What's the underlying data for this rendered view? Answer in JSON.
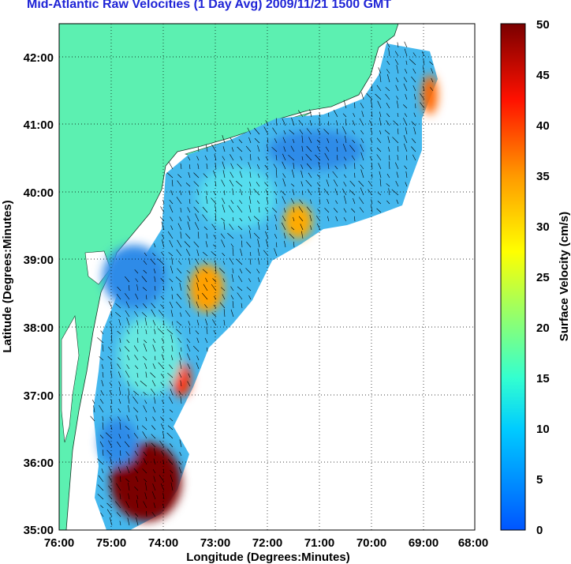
{
  "title": "Mid-Atlantic Raw Velocities (1 Day Avg) 2009/11/21 1500 GMT",
  "map": {
    "x_label": "Longitude (Degrees:Minutes)",
    "y_label": "Latitude (Degrees:Minutes)",
    "x_ticks": [
      "76:00",
      "75:00",
      "74:00",
      "73:00",
      "72:00",
      "71:00",
      "70:00",
      "69:00",
      "68:00"
    ],
    "y_ticks": [
      "42:00",
      "41:00",
      "40:00",
      "39:00",
      "38:00",
      "37:00",
      "36:00",
      "35:00"
    ],
    "x_range": [
      -76,
      -68
    ],
    "y_range": [
      35,
      42.5
    ],
    "land_color": "#5cf0b1",
    "grid": "dotted"
  },
  "colorbar": {
    "label": "Surface Velocity (cm/s)",
    "ticks": [
      "50",
      "45",
      "40",
      "35",
      "30",
      "25",
      "20",
      "15",
      "10",
      "5",
      "0"
    ],
    "range": [
      0,
      50
    ]
  }
}
